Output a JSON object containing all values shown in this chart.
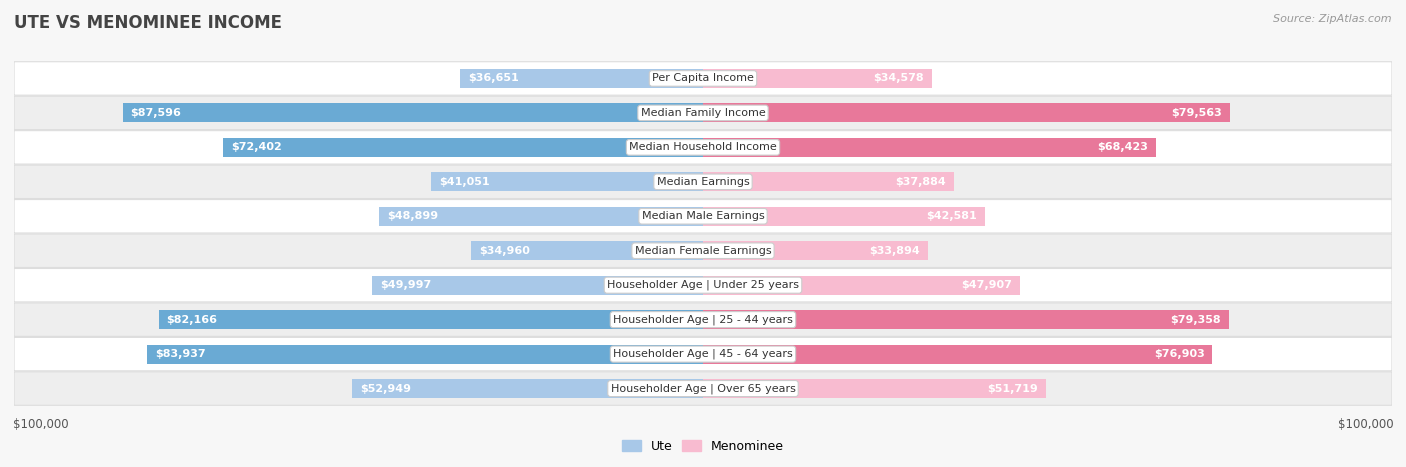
{
  "title": "UTE VS MENOMINEE INCOME",
  "source": "Source: ZipAtlas.com",
  "categories": [
    "Per Capita Income",
    "Median Family Income",
    "Median Household Income",
    "Median Earnings",
    "Median Male Earnings",
    "Median Female Earnings",
    "Householder Age | Under 25 years",
    "Householder Age | 25 - 44 years",
    "Householder Age | 45 - 64 years",
    "Householder Age | Over 65 years"
  ],
  "ute_values": [
    36651,
    87596,
    72402,
    41051,
    48899,
    34960,
    49997,
    82166,
    83937,
    52949
  ],
  "menominee_values": [
    34578,
    79563,
    68423,
    37884,
    42581,
    33894,
    47907,
    79358,
    76903,
    51719
  ],
  "ute_labels": [
    "$36,651",
    "$87,596",
    "$72,402",
    "$41,051",
    "$48,899",
    "$34,960",
    "$49,997",
    "$82,166",
    "$83,937",
    "$52,949"
  ],
  "menominee_labels": [
    "$34,578",
    "$79,563",
    "$68,423",
    "$37,884",
    "$42,581",
    "$33,894",
    "$47,907",
    "$79,358",
    "$76,903",
    "$51,719"
  ],
  "max_value": 100000,
  "ute_color_light": "#a8c8e8",
  "ute_color_dark": "#6aaad4",
  "menominee_color_light": "#f8bbd0",
  "menominee_color_dark": "#e8789a",
  "background_color": "#f7f7f7",
  "row_bg_even": "#ffffff",
  "row_bg_odd": "#eeeeee",
  "label_white": "#ffffff",
  "label_dark": "#555555",
  "title_color": "#444444",
  "source_color": "#999999",
  "legend_ute": "Ute",
  "legend_menominee": "Menominee",
  "threshold_inside": 30000
}
